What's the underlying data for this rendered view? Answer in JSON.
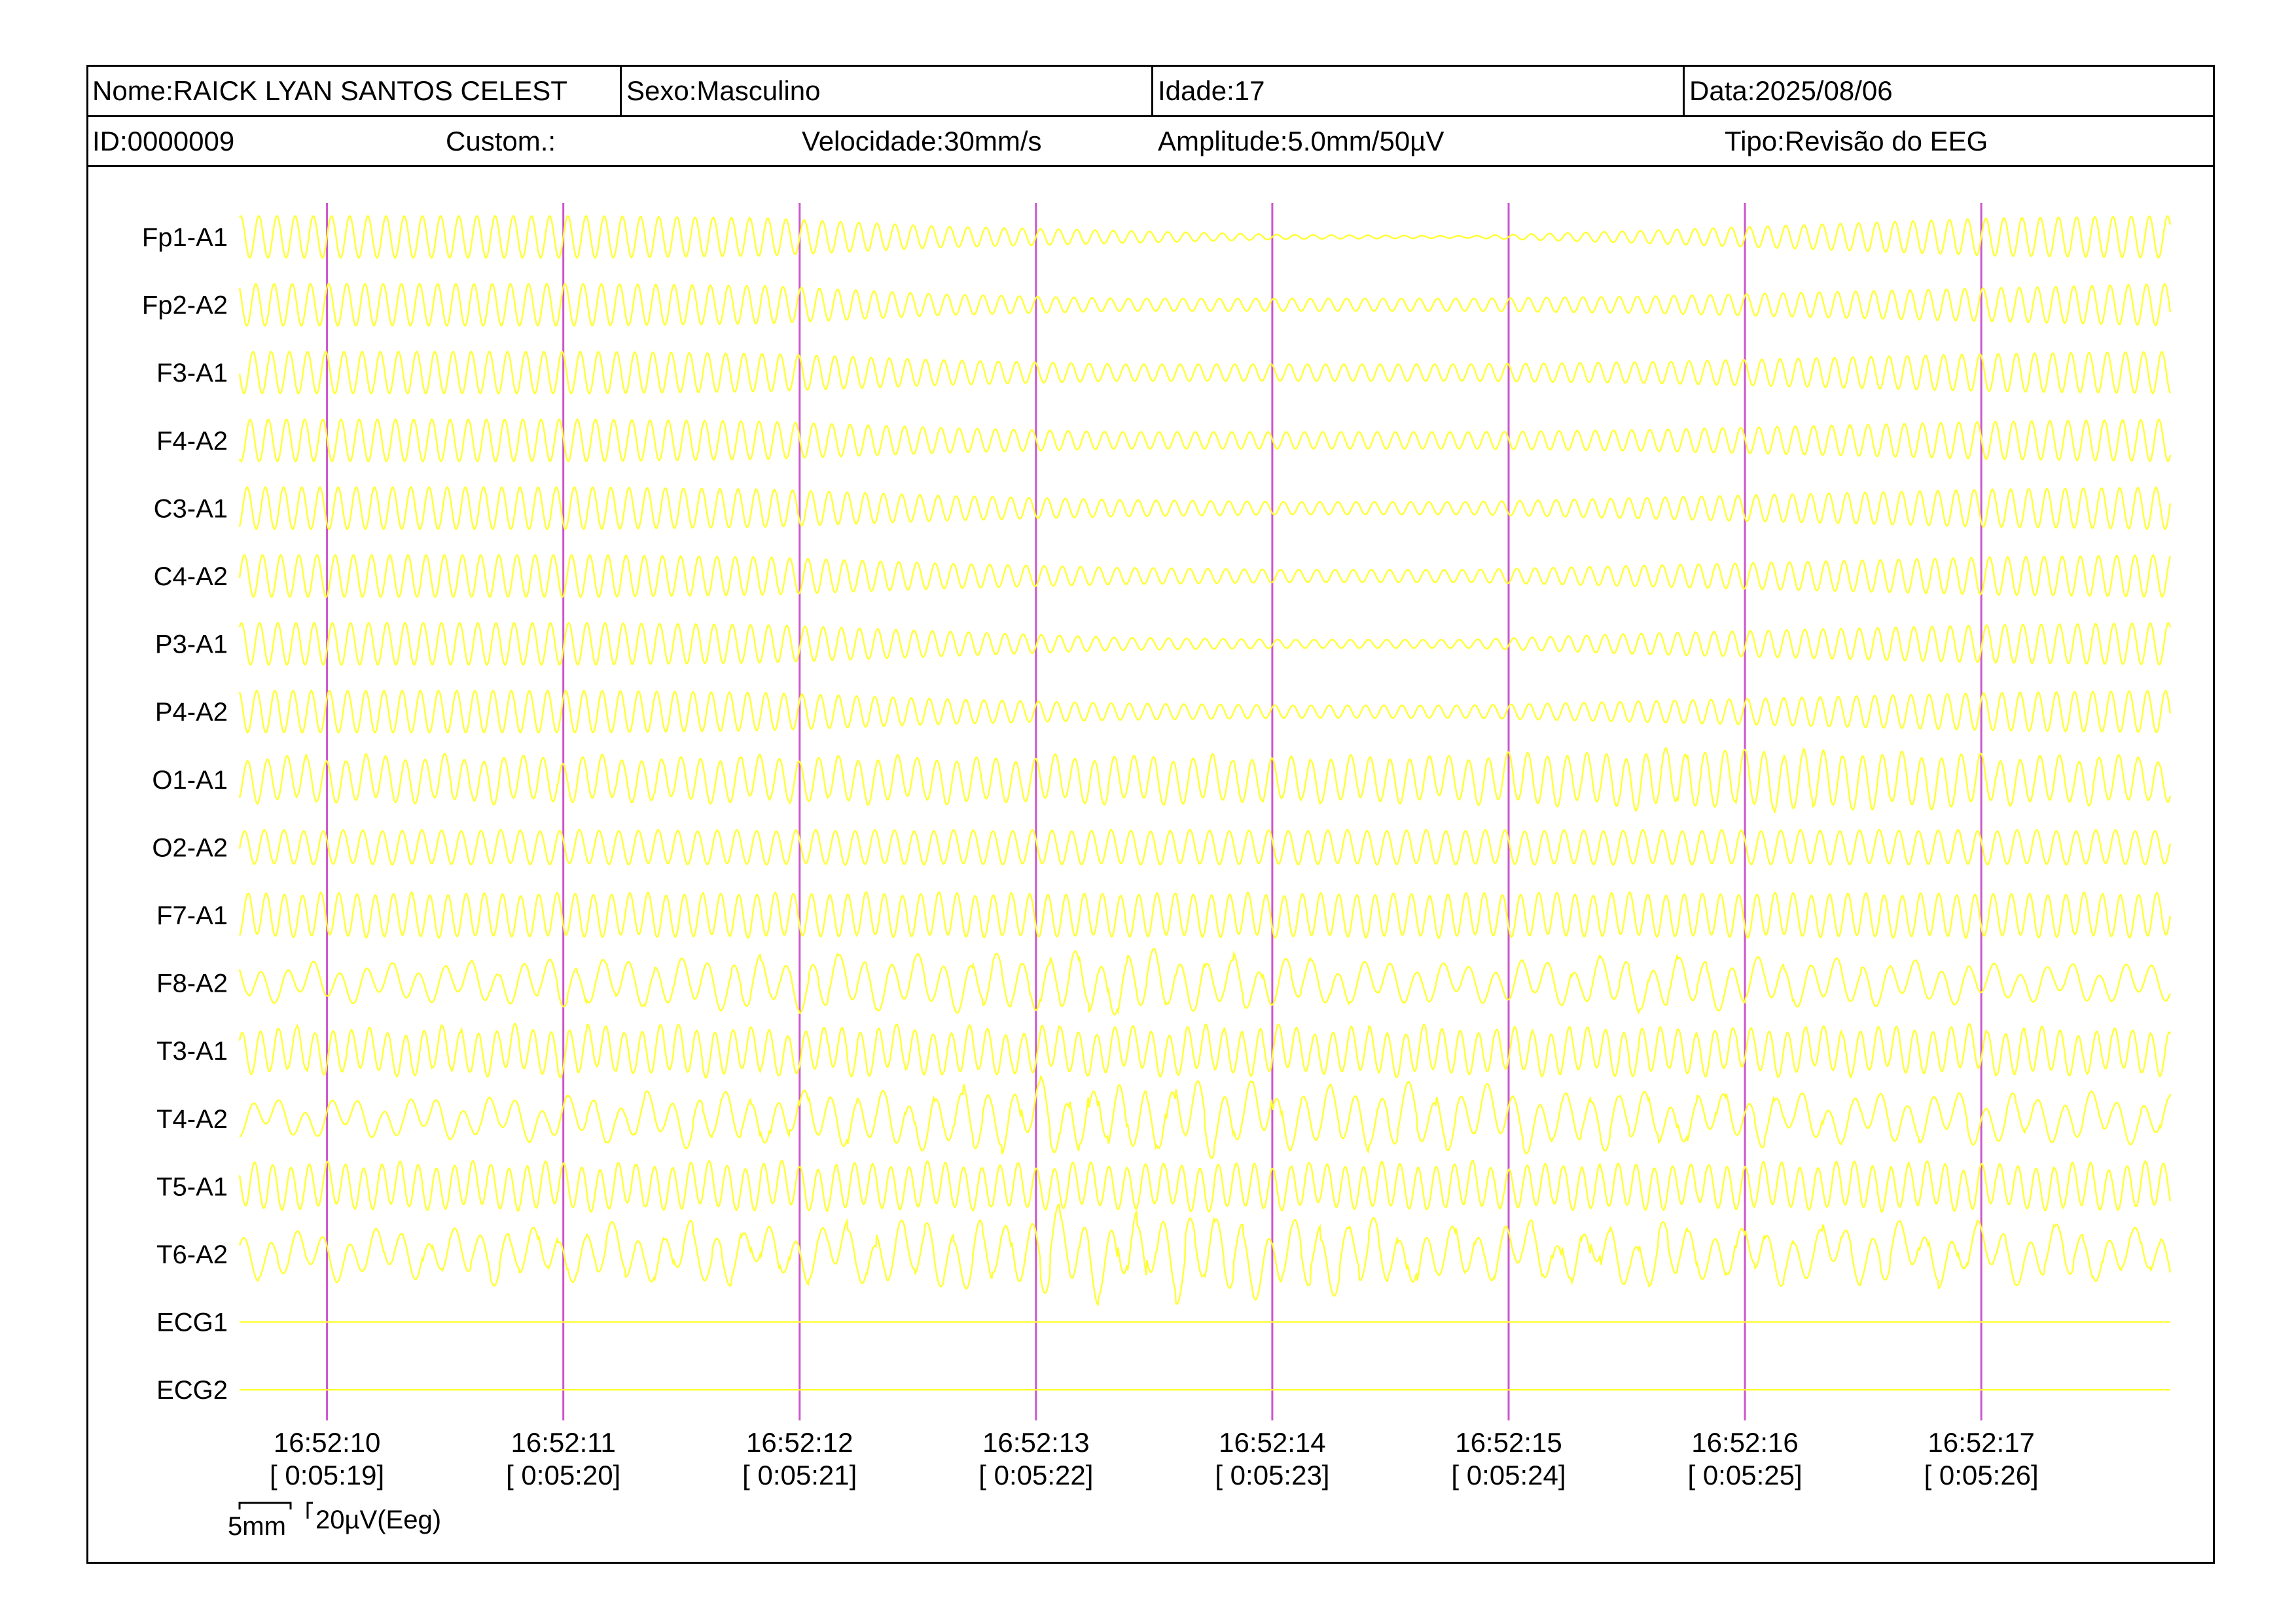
{
  "header": {
    "nome": "Nome:RAICK LYAN SANTOS CELEST",
    "sexo": "Sexo:Masculino",
    "idade": "Idade:17",
    "data": "Data:2025/08/06",
    "id": "ID:0000009",
    "custom": "Custom.:",
    "velocidade": "Velocidade:30mm/s",
    "amplitude": "Amplitude:5.0mm/50µV",
    "tipo": "Tipo:Revisão do EEG"
  },
  "scale_bar": {
    "time_label": "5mm",
    "amp_label": "20µV(Eeg)"
  },
  "colors": {
    "trace": "#ffff33",
    "marker": "#cc55cc",
    "background": "#ffffff",
    "text": "#000000"
  },
  "chart_data": {
    "type": "line",
    "title": "",
    "xlabel": "",
    "ylabel": "",
    "grid": false,
    "legend": "none",
    "x_unit": "seconds",
    "xlim": [
      "16:52:09.63",
      "16:52:17.80"
    ],
    "time_markers": [
      {
        "clock": "16:52:10",
        "elapsed": "[ 0:05:19]"
      },
      {
        "clock": "16:52:11",
        "elapsed": "[ 0:05:20]"
      },
      {
        "clock": "16:52:12",
        "elapsed": "[ 0:05:21]"
      },
      {
        "clock": "16:52:13",
        "elapsed": "[ 0:05:22]"
      },
      {
        "clock": "16:52:14",
        "elapsed": "[ 0:05:23]"
      },
      {
        "clock": "16:52:15",
        "elapsed": "[ 0:05:24]"
      },
      {
        "clock": "16:52:16",
        "elapsed": "[ 0:05:25]"
      },
      {
        "clock": "16:52:17",
        "elapsed": "[ 0:05:26]"
      }
    ],
    "channels": [
      {
        "name": "Fp1-A1",
        "dominant_hz": 13,
        "amplitude_profile": [
          1,
          1,
          1,
          0.9,
          0.5,
          0.3,
          0.1,
          0.05,
          0.3,
          0.6,
          0.9,
          1
        ],
        "artifact_level": 0
      },
      {
        "name": "Fp2-A2",
        "dominant_hz": 13,
        "amplitude_profile": [
          1,
          1,
          1,
          0.9,
          0.5,
          0.3,
          0.3,
          0.3,
          0.4,
          0.6,
          0.8,
          1
        ],
        "artifact_level": 0
      },
      {
        "name": "F3-A1",
        "dominant_hz": 13,
        "amplitude_profile": [
          1,
          1,
          1,
          0.9,
          0.6,
          0.4,
          0.4,
          0.4,
          0.5,
          0.7,
          0.9,
          1
        ],
        "artifact_level": 0
      },
      {
        "name": "F4-A2",
        "dominant_hz": 13,
        "amplitude_profile": [
          1,
          1,
          1,
          0.9,
          0.6,
          0.4,
          0.4,
          0.4,
          0.5,
          0.7,
          0.9,
          1
        ],
        "artifact_level": 0
      },
      {
        "name": "C3-A1",
        "dominant_hz": 13,
        "amplitude_profile": [
          1,
          1,
          1,
          0.9,
          0.6,
          0.4,
          0.3,
          0.3,
          0.5,
          0.7,
          0.9,
          1
        ],
        "artifact_level": 0
      },
      {
        "name": "C4-A2",
        "dominant_hz": 13,
        "amplitude_profile": [
          1,
          1,
          1,
          0.9,
          0.6,
          0.4,
          0.3,
          0.3,
          0.5,
          0.7,
          0.9,
          1
        ],
        "artifact_level": 0
      },
      {
        "name": "P3-A1",
        "dominant_hz": 13,
        "amplitude_profile": [
          1,
          1,
          1,
          0.9,
          0.6,
          0.3,
          0.2,
          0.2,
          0.5,
          0.7,
          0.9,
          1
        ],
        "artifact_level": 0
      },
      {
        "name": "P4-A2",
        "dominant_hz": 13,
        "amplitude_profile": [
          1,
          1,
          1,
          0.9,
          0.6,
          0.4,
          0.3,
          0.3,
          0.5,
          0.7,
          0.9,
          1
        ],
        "artifact_level": 0
      },
      {
        "name": "O1-A1",
        "dominant_hz": 12,
        "amplitude_profile": [
          1,
          1,
          1,
          1,
          1,
          1,
          1,
          1,
          1.3,
          1.3,
          1.1,
          1
        ],
        "artifact_level": 0.5
      },
      {
        "name": "O2-A2",
        "dominant_hz": 12,
        "amplitude_profile": [
          0.8,
          0.8,
          0.8,
          0.8,
          0.8,
          0.8,
          0.8,
          0.8,
          0.8,
          0.8,
          0.8,
          0.8
        ],
        "artifact_level": 0.1
      },
      {
        "name": "F7-A1",
        "dominant_hz": 13,
        "amplitude_profile": [
          1,
          1,
          1,
          1,
          1,
          1,
          1,
          1,
          1,
          1,
          1,
          1
        ],
        "artifact_level": 0.2
      },
      {
        "name": "F8-A2",
        "dominant_hz": 9,
        "amplitude_profile": [
          0.7,
          0.7,
          0.9,
          1,
          1,
          1.3,
          0.9,
          0.7,
          1,
          0.9,
          0.7,
          0.7
        ],
        "artifact_level": 1
      },
      {
        "name": "T3-A1",
        "dominant_hz": 13,
        "amplitude_profile": [
          1,
          1,
          1,
          1,
          1,
          1,
          1,
          1,
          1,
          1,
          1,
          1
        ],
        "artifact_level": 0.6
      },
      {
        "name": "T4-A2",
        "dominant_hz": 9,
        "amplitude_profile": [
          0.6,
          0.7,
          0.8,
          1,
          1.2,
          1.5,
          1.2,
          1.1,
          1,
          0.9,
          0.9,
          0.8
        ],
        "artifact_level": 1.2
      },
      {
        "name": "T5-A1",
        "dominant_hz": 13,
        "amplitude_profile": [
          1,
          1,
          1,
          1,
          1,
          1,
          1,
          1,
          1,
          1,
          1,
          1
        ],
        "artifact_level": 0.5
      },
      {
        "name": "T6-A2",
        "dominant_hz": 9,
        "amplitude_profile": [
          0.8,
          0.9,
          1,
          1,
          1.2,
          1.6,
          1.3,
          1.1,
          1.1,
          1,
          1,
          0.9
        ],
        "artifact_level": 1.4
      },
      {
        "name": "ECG1",
        "dominant_hz": 0,
        "amplitude_profile": [
          0,
          0,
          0,
          0,
          0,
          0,
          0,
          0,
          0,
          0,
          0,
          0
        ],
        "artifact_level": 0
      },
      {
        "name": "ECG2",
        "dominant_hz": 0,
        "amplitude_profile": [
          0,
          0,
          0,
          0,
          0,
          0,
          0,
          0,
          0,
          0,
          0,
          0
        ],
        "artifact_level": 0
      }
    ]
  }
}
